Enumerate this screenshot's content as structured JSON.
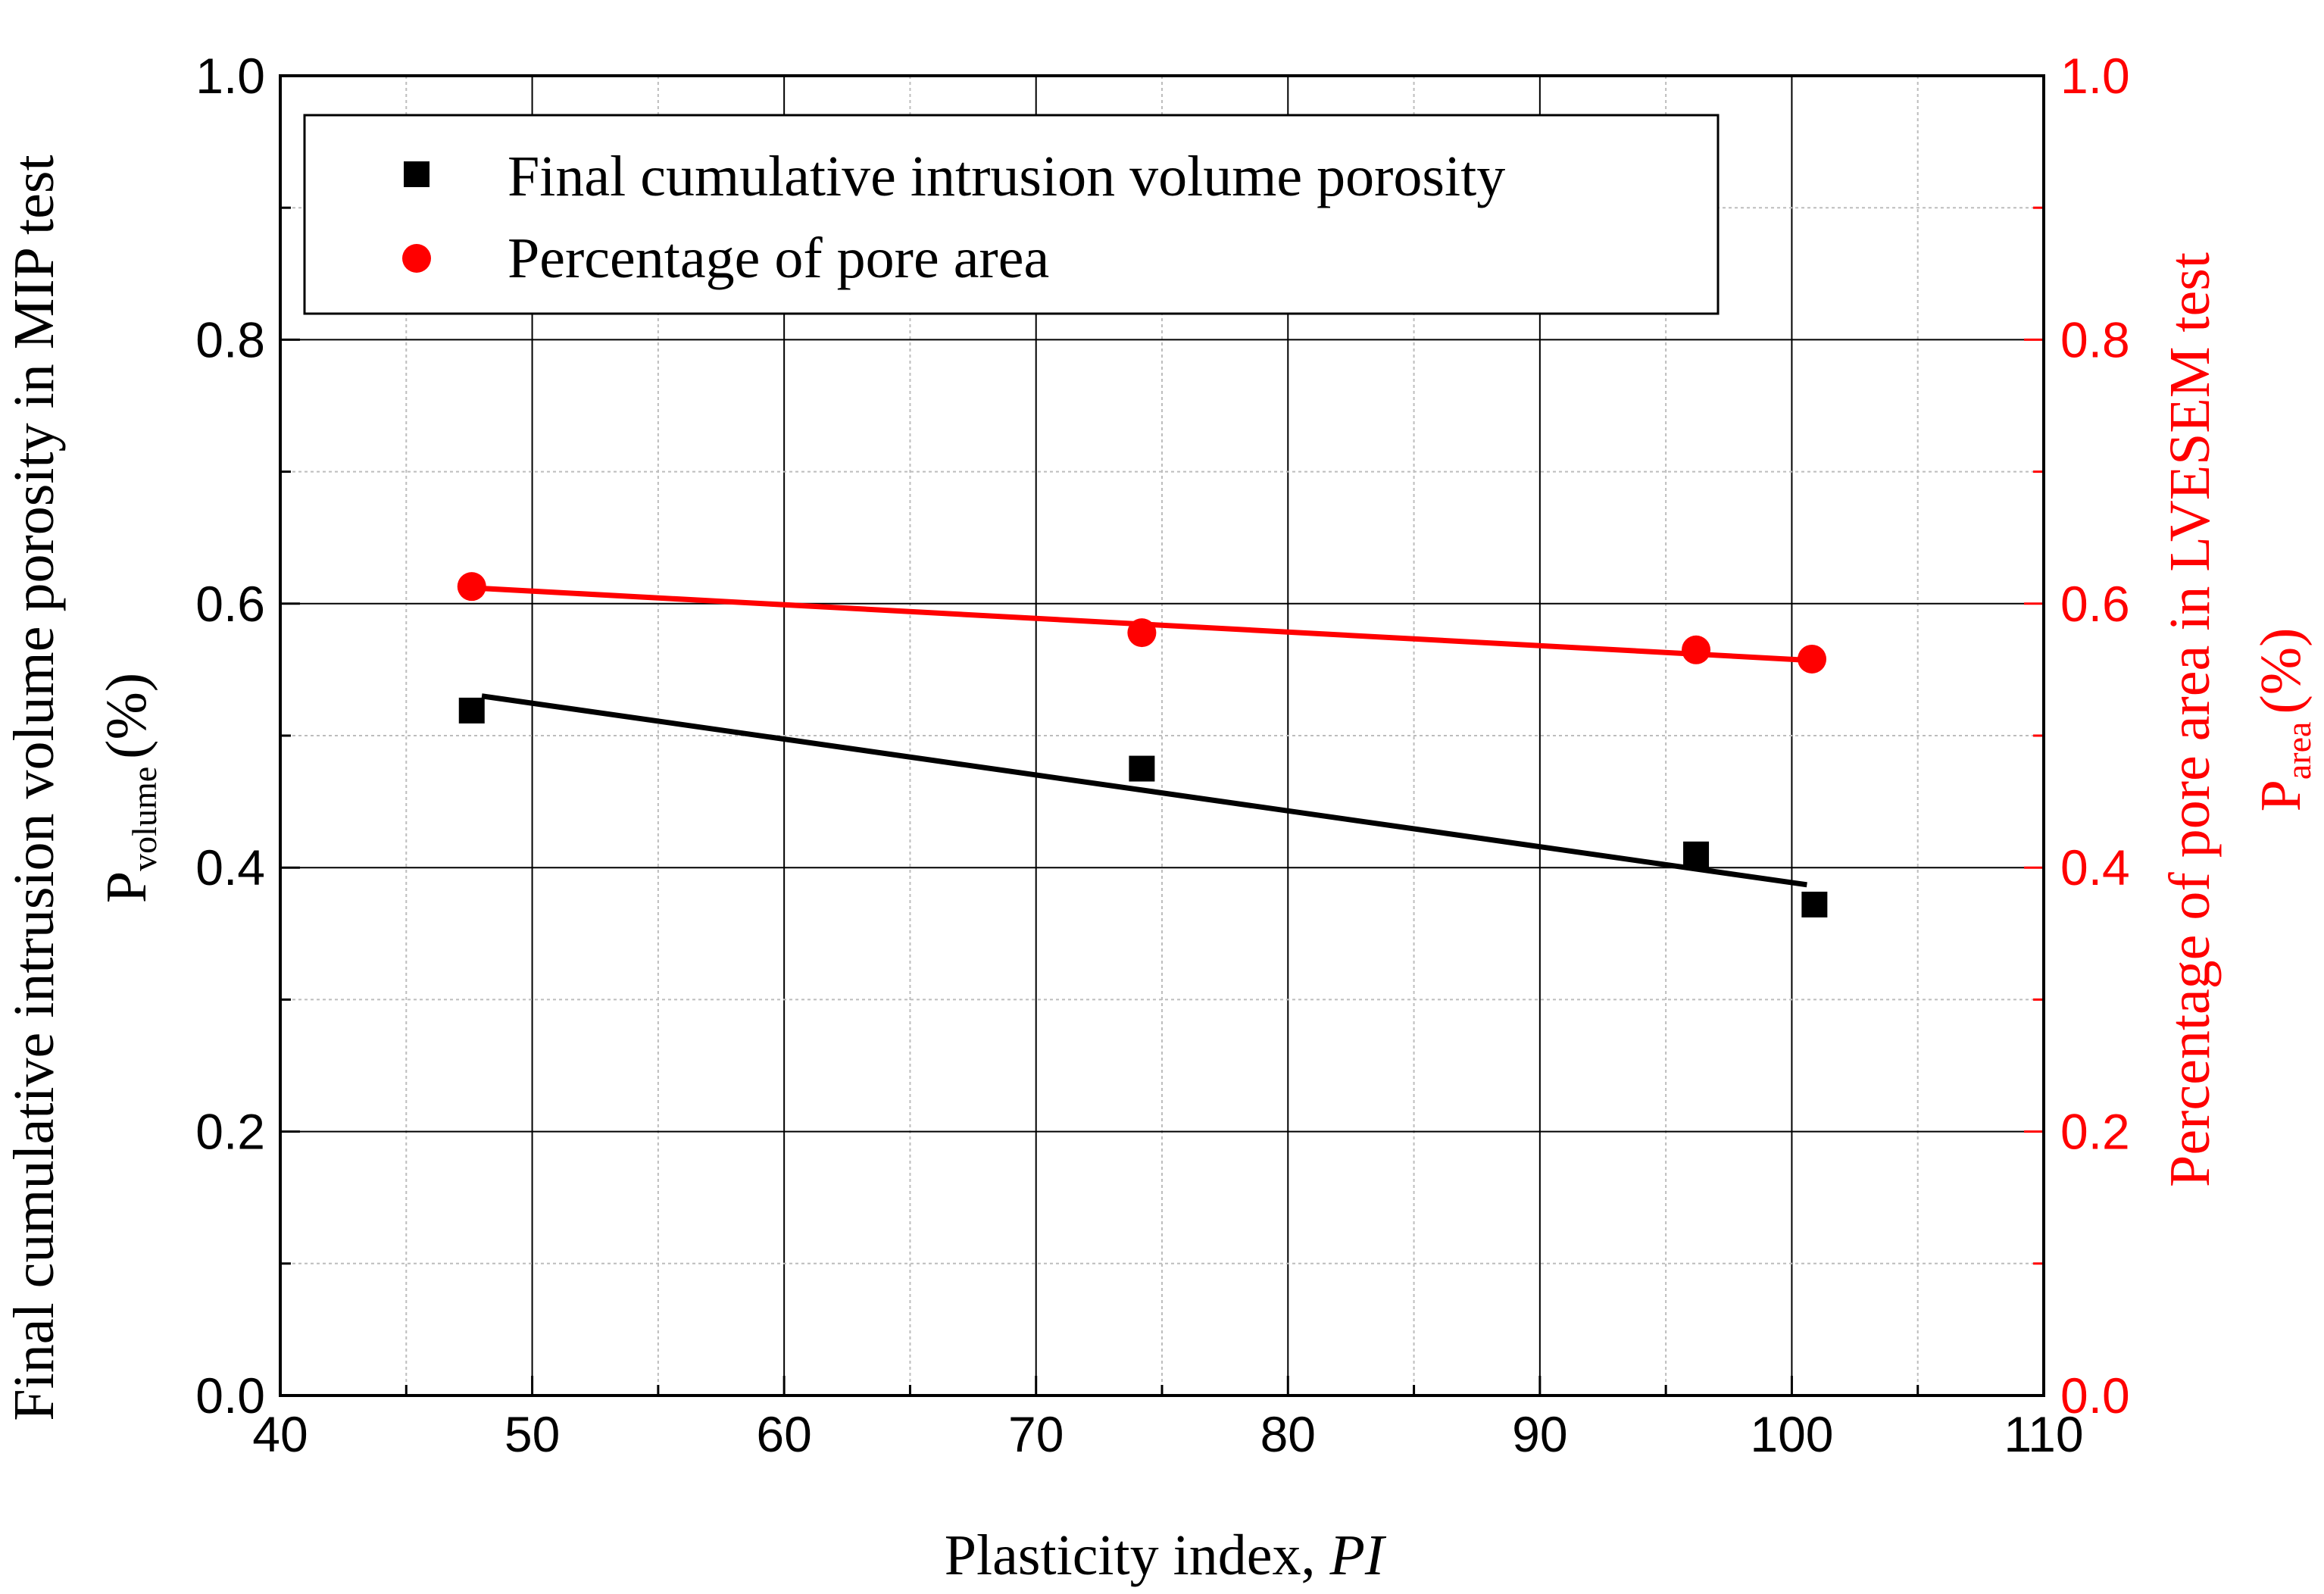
{
  "chart_data": {
    "type": "scatter",
    "xlabel": "Plasticity index, ",
    "xlabel_italic": "PI",
    "ylabel_left_line1": "Final cumulative intrusion volume porosity in MIP test",
    "ylabel_left_base": "P",
    "ylabel_left_sub": "volume",
    "ylabel_left_unit": "(%)",
    "ylabel_right_line1": "Percentage of pore area in LVESEM test",
    "ylabel_right_base": "P",
    "ylabel_right_sub": "area",
    "ylabel_right_unit": "(%)",
    "xlim": [
      40,
      110
    ],
    "ylim_left": [
      0.0,
      1.0
    ],
    "ylim_right": [
      0.0,
      1.0
    ],
    "x_ticks": [
      "40",
      "50",
      "60",
      "70",
      "80",
      "90",
      "100",
      "110"
    ],
    "x_tick_values": [
      40,
      50,
      60,
      70,
      80,
      90,
      100,
      110
    ],
    "y_ticks_left": [
      "0.0",
      "0.2",
      "0.4",
      "0.6",
      "0.8",
      "1.0"
    ],
    "y_ticks_right": [
      "0.0",
      "0.2",
      "0.4",
      "0.6",
      "0.8",
      "1.0"
    ],
    "y_tick_values": [
      0.0,
      0.2,
      0.4,
      0.6,
      0.8,
      1.0
    ],
    "grid": true,
    "legend_position": "top-left",
    "series": [
      {
        "name": "Final cumulative intrusion volume porosity",
        "marker": "square",
        "color": "#000000",
        "axis": "left",
        "x": [
          47.6,
          74.2,
          96.2,
          100.9
        ],
        "y": [
          0.519,
          0.475,
          0.41,
          0.372
        ],
        "fit": {
          "x": [
            48.0,
            100.6
          ],
          "y": [
            0.53,
            0.387
          ]
        }
      },
      {
        "name": "Percentage of pore area",
        "marker": "circle",
        "color": "#ff0000",
        "axis": "right",
        "x": [
          47.6,
          74.2,
          96.2,
          100.8
        ],
        "y": [
          0.613,
          0.578,
          0.565,
          0.558
        ],
        "fit": {
          "x": [
            47.6,
            100.8
          ],
          "y": [
            0.612,
            0.557
          ]
        }
      }
    ]
  }
}
